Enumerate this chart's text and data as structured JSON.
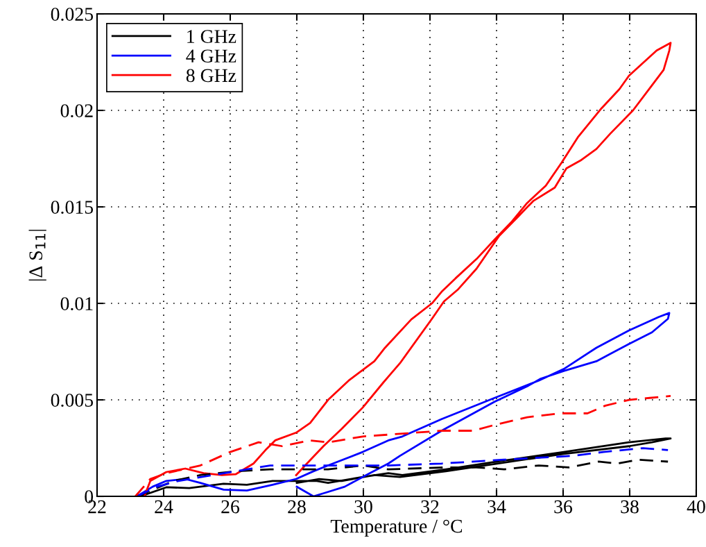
{
  "chart_data": {
    "type": "line",
    "xlabel": "Temperature / °C",
    "ylabel": "|Δ S$_{11}$|",
    "xlim": [
      22,
      40
    ],
    "xticks": [
      22,
      24,
      26,
      28,
      30,
      32,
      34,
      36,
      38,
      40
    ],
    "ylim": [
      0,
      0.025
    ],
    "yticks": [
      0,
      0.005,
      0.01,
      0.015,
      0.02,
      0.025
    ],
    "grid": true,
    "legend": "top left",
    "marker": "none",
    "series": [
      {
        "name": "1 GHz",
        "color": "#000000",
        "line_style": "solid",
        "x": [
          23.3,
          24.08,
          24.77,
          25.8,
          26.5,
          27.27,
          28.0,
          28.6,
          28.94,
          29.98,
          30.75,
          31.17,
          32.48,
          34.02,
          36.02,
          37.98,
          39.08,
          39.23,
          38.67,
          37.98,
          36.02,
          34.02,
          32.48,
          31.1,
          30.33,
          29.35,
          28.67,
          28.0
        ],
        "values": [
          0,
          0.00047,
          0.00043,
          0.00065,
          0.0006,
          0.0008,
          0.0008,
          0.0008,
          0.0007,
          0.001,
          0.0012,
          0.0011,
          0.0014,
          0.0018,
          0.0023,
          0.0028,
          0.003,
          0.003,
          0.0028,
          0.0026,
          0.0022,
          0.0017,
          0.0013,
          0.001,
          0.0011,
          0.0008,
          0.0009,
          0.0007
        ]
      },
      {
        "name": "4 GHz",
        "color": "#0000ff",
        "line_style": "solid",
        "x": [
          23.2,
          23.67,
          24.08,
          24.65,
          25.1,
          25.8,
          26.5,
          27.27,
          27.98,
          28.5,
          28.94,
          29.98,
          30.75,
          31.17,
          32.35,
          33.94,
          35.27,
          36.02,
          37.0,
          37.98,
          38.88,
          39.19,
          39.15,
          38.67,
          37.98,
          37.0,
          36.02,
          35.33,
          34.92,
          33.94,
          32.35,
          31.1,
          30.75,
          30.19,
          29.44,
          28.88,
          28.5,
          28.0
        ],
        "values": [
          0,
          0.0005,
          0.0008,
          0.0009,
          0.0007,
          0.00035,
          0.0003,
          0.0006,
          0.0009,
          0.0013,
          0.0016,
          0.0023,
          0.0029,
          0.0031,
          0.004,
          0.0051,
          0.006,
          0.0066,
          0.0077,
          0.0086,
          0.0093,
          0.0095,
          0.0092,
          0.0085,
          0.0079,
          0.007,
          0.0065,
          0.0061,
          0.0057,
          0.0049,
          0.0034,
          0.0021,
          0.0017,
          0.0012,
          0.0005,
          0.0002,
          0.0,
          0.0005
        ]
      },
      {
        "name": "8 GHz",
        "color": "#ff0000",
        "line_style": "solid",
        "x": [
          23.42,
          23.6,
          24.08,
          24.65,
          25.2,
          25.75,
          26.17,
          26.7,
          27.06,
          27.35,
          27.98,
          28.4,
          28.94,
          29.56,
          30.33,
          30.65,
          31.44,
          32.06,
          32.35,
          32.77,
          33.4,
          33.94,
          34.44,
          34.92,
          35.48,
          35.96,
          36.44,
          37.15,
          37.69,
          37.98,
          38.81,
          39.23,
          39.19,
          39.02,
          38.67,
          38.1,
          37.42,
          37.0,
          36.52,
          36.1,
          35.75,
          35.1,
          34.65,
          34.08,
          33.4,
          32.83,
          32.42,
          32.06,
          31.1,
          30.75,
          30.6,
          29.98,
          29.35,
          28.8,
          28.25,
          27.98
        ],
        "values": [
          0,
          0.0008,
          0.00126,
          0.00144,
          0.0012,
          0.0011,
          0.00115,
          0.0017,
          0.0024,
          0.0029,
          0.0033,
          0.0038,
          0.005,
          0.006,
          0.007,
          0.0077,
          0.00917,
          0.01,
          0.0106,
          0.0113,
          0.0123,
          0.0133,
          0.0142,
          0.0152,
          0.0161,
          0.0173,
          0.0186,
          0.0201,
          0.0211,
          0.0218,
          0.0231,
          0.0235,
          0.0231,
          0.0221,
          0.0213,
          0.02,
          0.0188,
          0.018,
          0.0174,
          0.017,
          0.016,
          0.0153,
          0.0145,
          0.0135,
          0.0118,
          0.0107,
          0.0101,
          0.0092,
          0.0069,
          0.0062,
          0.0059,
          0.0046,
          0.0035,
          0.0026,
          0.0016,
          0.0011
        ]
      },
      {
        "color": "#000000",
        "line_style": "dashed",
        "x": [
          23.2,
          24.3,
          25.1,
          26.17,
          27.2,
          28.0,
          28.94,
          29.98,
          30.75,
          32.48,
          33.4,
          34.23,
          35.27,
          36.17,
          37.06,
          37.63,
          38.25,
          39.15
        ],
        "values": [
          0,
          0.0008,
          0.0011,
          0.0013,
          0.0014,
          0.0014,
          0.0014,
          0.0016,
          0.0014,
          0.0015,
          0.0015,
          0.0014,
          0.0016,
          0.0015,
          0.0018,
          0.0017,
          0.0019,
          0.0018
        ]
      },
      {
        "color": "#0000ff",
        "line_style": "dashed",
        "x": [
          23.2,
          23.8,
          24.44,
          25.48,
          26.5,
          27.2,
          28.25,
          29.65,
          30.75,
          32.35,
          34.23,
          36.31,
          37.21,
          38.4,
          39.15
        ],
        "values": [
          0,
          0.0005,
          0.0008,
          0.0011,
          0.0014,
          0.0016,
          0.0016,
          0.0016,
          0.0016,
          0.0017,
          0.0019,
          0.0021,
          0.0023,
          0.0025,
          0.0024
        ]
      },
      {
        "color": "#ff0000",
        "line_style": "dashed",
        "x": [
          23.15,
          23.6,
          24.08,
          25.1,
          26.0,
          26.85,
          27.56,
          28.4,
          28.94,
          29.98,
          32.35,
          33.31,
          33.94,
          34.92,
          35.9,
          36.73,
          37.27,
          37.98,
          38.6,
          39.23
        ],
        "values": [
          0,
          0.0009,
          0.0012,
          0.0016,
          0.0023,
          0.0028,
          0.0026,
          0.0029,
          0.0028,
          0.0031,
          0.0034,
          0.0034,
          0.0037,
          0.0041,
          0.0043,
          0.0043,
          0.0047,
          0.005,
          0.0051,
          0.0052
        ]
      }
    ]
  }
}
